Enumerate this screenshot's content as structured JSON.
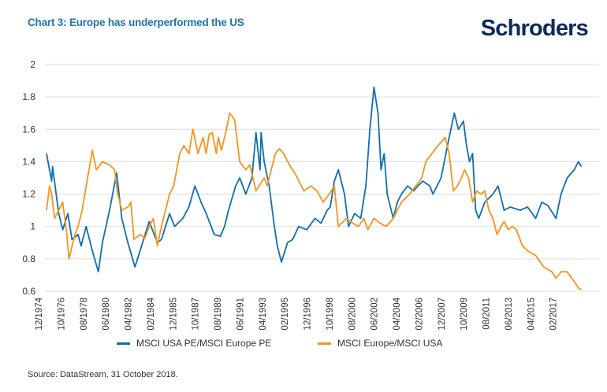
{
  "title": "Chart 3: Europe has underperformed the US",
  "logo_text": "Schroders",
  "source": "Source: DataStream, 31 October 2018.",
  "colors": {
    "title": "#1f74ad",
    "usa_pe": "#0f6fb0",
    "europe": "#f7941d",
    "grid": "#dcdcdc",
    "logo": "#0d2a5a"
  },
  "chart_data": {
    "type": "line",
    "title": "Chart 3: Europe has underperformed the US",
    "xlabel": "",
    "ylabel": "",
    "ylim": [
      0.6,
      2
    ],
    "yticks": [
      "0.6",
      "0.8",
      "1",
      "1.2",
      "1.4",
      "1.6",
      "1.8",
      "2"
    ],
    "xlim": [
      "1974-12",
      "2018-10"
    ],
    "xticks": [
      "12/1974",
      "10/1976",
      "08/1978",
      "06/1980",
      "04/1982",
      "02/1984",
      "12/1985",
      "10/1987",
      "08/1989",
      "06/1991",
      "04/1993",
      "02/1995",
      "12/1996",
      "10/1998",
      "08/2000",
      "06/2002",
      "04/2004",
      "02/2006",
      "12/2007",
      "10/2009",
      "08/2011",
      "06/2013",
      "04/2015",
      "02/2017"
    ],
    "grid": "horizontal",
    "legend": "bottom",
    "series": [
      {
        "name": "MSCI USA PE/MSCI Europe PE",
        "color": "#0f6fb0",
        "x": [
          "1974-12",
          "1975-05",
          "1975-06",
          "1975-12",
          "1976-04",
          "1976-09",
          "1977-01",
          "1977-07",
          "1977-10",
          "1978-03",
          "1978-09",
          "1979-03",
          "1979-07",
          "1980-02",
          "1980-09",
          "1981-02",
          "1981-08",
          "1982-03",
          "1982-08",
          "1983-01",
          "1983-05",
          "1984-01",
          "1984-05",
          "1985-01",
          "1985-06",
          "1986-02",
          "1986-08",
          "1987-02",
          "1987-08",
          "1988-01",
          "1988-09",
          "1989-03",
          "1989-07",
          "1989-11",
          "1990-06",
          "1990-10",
          "1991-04",
          "1991-10",
          "1992-02",
          "1992-06",
          "1992-07",
          "1992-10",
          "1993-03",
          "1993-08",
          "1993-11",
          "1994-03",
          "1994-09",
          "1995-02",
          "1995-08",
          "1996-04",
          "1996-12",
          "1997-06",
          "1997-12",
          "1998-03",
          "1998-07",
          "1998-11",
          "1999-05",
          "1999-09",
          "2000-03",
          "2000-09",
          "2001-02",
          "2001-06",
          "2001-10",
          "2002-02",
          "2002-05",
          "2002-08",
          "2002-11",
          "2003-05",
          "2003-09",
          "2004-01",
          "2004-07",
          "2005-01",
          "2005-05",
          "2005-10",
          "2006-05",
          "2006-08",
          "2007-04",
          "2007-12",
          "2008-05",
          "2008-09",
          "2009-02",
          "2009-05",
          "2009-08",
          "2009-11",
          "2010-02",
          "2010-05",
          "2010-11",
          "2011-07",
          "2011-12",
          "2012-06",
          "2012-12",
          "2013-10",
          "2014-05",
          "2015-01",
          "2015-07",
          "2016-01",
          "2016-09",
          "2017-02",
          "2017-08",
          "2018-03",
          "2018-07",
          "2018-10"
        ],
        "y": [
          1.45,
          1.28,
          1.37,
          1.08,
          0.98,
          1.08,
          0.92,
          0.95,
          0.88,
          1.0,
          0.85,
          0.72,
          0.9,
          1.1,
          1.33,
          1.05,
          0.9,
          0.75,
          0.85,
          0.95,
          1.03,
          0.9,
          0.92,
          1.08,
          1.0,
          1.05,
          1.12,
          1.25,
          1.15,
          1.08,
          0.95,
          0.94,
          1.0,
          1.1,
          1.25,
          1.3,
          1.2,
          1.3,
          1.58,
          1.35,
          1.58,
          1.4,
          1.25,
          1.0,
          0.88,
          0.78,
          0.9,
          0.92,
          1.0,
          0.98,
          1.05,
          1.02,
          1.1,
          1.12,
          1.28,
          1.35,
          1.2,
          1.0,
          1.08,
          1.05,
          1.25,
          1.6,
          1.86,
          1.7,
          1.35,
          1.45,
          1.2,
          1.05,
          1.15,
          1.2,
          1.25,
          1.22,
          1.25,
          1.28,
          1.25,
          1.2,
          1.3,
          1.55,
          1.7,
          1.6,
          1.65,
          1.5,
          1.4,
          1.45,
          1.1,
          1.05,
          1.15,
          1.2,
          1.25,
          1.1,
          1.12,
          1.1,
          1.12,
          1.05,
          1.15,
          1.13,
          1.05,
          1.2,
          1.3,
          1.35,
          1.4,
          1.37
        ]
      },
      {
        "name": "MSCI Europe/MSCI USA",
        "color": "#f7941d",
        "x": [
          "1974-12",
          "1975-03",
          "1975-05",
          "1975-08",
          "1975-12",
          "1976-04",
          "1976-08",
          "1976-10",
          "1977-04",
          "1977-07",
          "1977-11",
          "1978-03",
          "1978-09",
          "1979-01",
          "1979-07",
          "1980-02",
          "1980-07",
          "1980-10",
          "1981-02",
          "1981-08",
          "1981-11",
          "1982-02",
          "1982-08",
          "1983-01",
          "1983-05",
          "1983-09",
          "1984-01",
          "1984-05",
          "1985-01",
          "1985-05",
          "1985-11",
          "1986-03",
          "1986-08",
          "1986-12",
          "1987-05",
          "1987-10",
          "1988-01",
          "1988-04",
          "1988-07",
          "1988-11",
          "1989-01",
          "1989-04",
          "1989-09",
          "1989-12",
          "1990-05",
          "1990-10",
          "1991-04",
          "1991-08",
          "1992-02",
          "1992-10",
          "1993-01",
          "1993-05",
          "1993-09",
          "1994-01",
          "1994-05",
          "1994-11",
          "1995-05",
          "1996-01",
          "1996-08",
          "1997-02",
          "1997-08",
          "1998-02",
          "1998-07",
          "1998-11",
          "1999-07",
          "2000-01",
          "2000-07",
          "2000-12",
          "2001-04",
          "2001-10",
          "2002-04",
          "2002-10",
          "2003-05",
          "2004-01",
          "2004-09",
          "2005-03",
          "2005-09",
          "2006-01",
          "2006-07",
          "2007-01",
          "2007-08",
          "2007-12",
          "2008-04",
          "2008-08",
          "2008-12",
          "2009-03",
          "2009-07",
          "2009-11",
          "2010-03",
          "2010-07",
          "2010-11",
          "2011-03",
          "2011-07",
          "2011-11",
          "2012-03",
          "2012-06",
          "2012-10",
          "2013-02",
          "2013-06",
          "2013-12",
          "2014-05",
          "2015-01",
          "2015-09",
          "2016-05",
          "2016-09",
          "2017-02",
          "2017-08",
          "2018-03",
          "2018-07",
          "2018-10"
        ],
        "y": [
          1.1,
          1.25,
          1.2,
          1.05,
          1.1,
          1.15,
          0.95,
          0.8,
          0.95,
          1.0,
          1.1,
          1.25,
          1.47,
          1.35,
          1.4,
          1.38,
          1.35,
          1.2,
          1.1,
          1.12,
          1.15,
          0.92,
          0.95,
          0.93,
          1.0,
          1.05,
          0.88,
          1.0,
          1.2,
          1.25,
          1.45,
          1.5,
          1.45,
          1.6,
          1.45,
          1.55,
          1.45,
          1.57,
          1.58,
          1.45,
          1.55,
          1.47,
          1.6,
          1.7,
          1.66,
          1.4,
          1.35,
          1.38,
          1.22,
          1.3,
          1.25,
          1.35,
          1.45,
          1.48,
          1.45,
          1.38,
          1.32,
          1.22,
          1.25,
          1.22,
          1.15,
          1.2,
          1.25,
          1.0,
          1.05,
          1.02,
          1.0,
          1.05,
          0.98,
          1.05,
          1.02,
          1.0,
          1.05,
          1.15,
          1.2,
          1.25,
          1.3,
          1.4,
          1.45,
          1.5,
          1.55,
          1.45,
          1.22,
          1.25,
          1.3,
          1.35,
          1.3,
          1.15,
          1.22,
          1.2,
          1.22,
          1.1,
          1.05,
          0.95,
          1.0,
          1.03,
          0.98,
          1.0,
          0.98,
          0.88,
          0.85,
          0.82,
          0.75,
          0.72,
          0.68,
          0.72,
          0.72,
          0.66,
          0.62,
          0.61
        ]
      }
    ]
  }
}
